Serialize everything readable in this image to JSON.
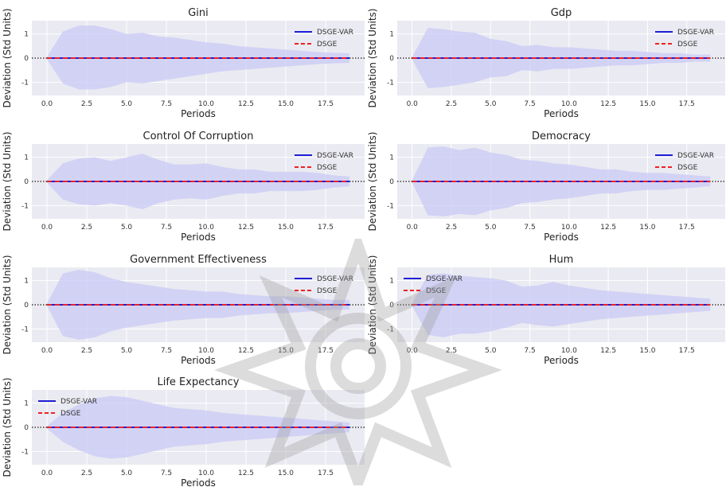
{
  "chart_data": [
    {
      "type": "line",
      "title": "Gini",
      "xlabel": "Periods",
      "ylabel": "Deviation (Std Units)",
      "xlim": [
        -0.95,
        19.95
      ],
      "ylim": [
        -1.55,
        1.55
      ],
      "xticks": [
        "0.0",
        "2.5",
        "5.0",
        "7.5",
        "10.0",
        "12.5",
        "15.0",
        "17.5"
      ],
      "yticks": [
        "-1",
        "0",
        "1"
      ],
      "legend_position": "top-right",
      "grid": true,
      "reference_line_y": 0,
      "x": [
        0,
        1,
        2,
        3,
        4,
        5,
        6,
        7,
        8,
        9,
        10,
        11,
        12,
        13,
        14,
        15,
        16,
        17,
        18,
        19
      ],
      "band_upper": [
        0.05,
        1.1,
        1.35,
        1.35,
        1.2,
        1.0,
        1.05,
        0.9,
        0.85,
        0.75,
        0.65,
        0.6,
        0.5,
        0.45,
        0.4,
        0.35,
        0.3,
        0.25,
        0.22,
        0.2
      ],
      "band_lower": [
        -0.05,
        -1.05,
        -1.3,
        -1.3,
        -1.2,
        -1.0,
        -1.05,
        -0.95,
        -0.85,
        -0.75,
        -0.65,
        -0.55,
        -0.5,
        -0.45,
        -0.4,
        -0.35,
        -0.3,
        -0.25,
        -0.22,
        -0.2
      ],
      "series": [
        {
          "name": "DSGE-VAR",
          "values": [
            0,
            0,
            0,
            0,
            0,
            0,
            0,
            0,
            0,
            0,
            0,
            0,
            0,
            0,
            0,
            0,
            0,
            0,
            0,
            0
          ],
          "color": "#1f1fd6",
          "style": "solid"
        },
        {
          "name": "DSGE",
          "values": [
            0,
            0,
            0,
            0,
            0,
            0,
            0,
            0,
            0,
            0,
            0,
            0,
            0,
            0,
            0,
            0,
            0,
            0,
            0,
            0
          ],
          "color": "#ee2222",
          "style": "dashed"
        }
      ]
    },
    {
      "type": "line",
      "title": "Gdp",
      "xlabel": "Periods",
      "ylabel": "Deviation (Std Units)",
      "xlim": [
        -0.95,
        19.95
      ],
      "ylim": [
        -1.55,
        1.55
      ],
      "xticks": [
        "0.0",
        "2.5",
        "5.0",
        "7.5",
        "10.0",
        "12.5",
        "15.0",
        "17.5"
      ],
      "yticks": [
        "-1",
        "0",
        "1"
      ],
      "legend_position": "top-right",
      "grid": true,
      "reference_line_y": 0,
      "x": [
        0,
        1,
        2,
        3,
        4,
        5,
        6,
        7,
        8,
        9,
        10,
        11,
        12,
        13,
        14,
        15,
        16,
        17,
        18,
        19
      ],
      "band_upper": [
        0.05,
        1.25,
        1.2,
        1.1,
        1.05,
        0.8,
        0.7,
        0.5,
        0.55,
        0.45,
        0.45,
        0.4,
        0.35,
        0.3,
        0.3,
        0.25,
        0.2,
        0.2,
        0.15,
        0.15
      ],
      "band_lower": [
        -0.05,
        -1.25,
        -1.2,
        -1.1,
        -1.0,
        -0.8,
        -0.75,
        -0.5,
        -0.55,
        -0.45,
        -0.45,
        -0.4,
        -0.35,
        -0.3,
        -0.3,
        -0.25,
        -0.2,
        -0.2,
        -0.15,
        -0.15
      ],
      "series": [
        {
          "name": "DSGE-VAR",
          "values": [
            0,
            0,
            0,
            0,
            0,
            0,
            0,
            0,
            0,
            0,
            0,
            0,
            0,
            0,
            0,
            0,
            0,
            0,
            0,
            0
          ],
          "color": "#1f1fd6",
          "style": "solid"
        },
        {
          "name": "DSGE",
          "values": [
            0,
            0,
            0,
            0,
            0,
            0,
            0,
            0,
            0,
            0,
            0,
            0,
            0,
            0,
            0,
            0,
            0,
            0,
            0,
            0
          ],
          "color": "#ee2222",
          "style": "dashed"
        }
      ]
    },
    {
      "type": "line",
      "title": "Control Of Corruption",
      "xlabel": "Periods",
      "ylabel": "Deviation (Std Units)",
      "xlim": [
        -0.95,
        19.95
      ],
      "ylim": [
        -1.55,
        1.55
      ],
      "xticks": [
        "0.0",
        "2.5",
        "5.0",
        "7.5",
        "10.0",
        "12.5",
        "15.0",
        "17.5"
      ],
      "yticks": [
        "-1",
        "0",
        "1"
      ],
      "legend_position": "top-right",
      "grid": true,
      "reference_line_y": 0,
      "x": [
        0,
        1,
        2,
        3,
        4,
        5,
        6,
        7,
        8,
        9,
        10,
        11,
        12,
        13,
        14,
        15,
        16,
        17,
        18,
        19
      ],
      "band_upper": [
        0.05,
        0.75,
        0.95,
        1.0,
        0.85,
        1.0,
        1.15,
        0.9,
        0.7,
        0.7,
        0.75,
        0.6,
        0.5,
        0.5,
        0.4,
        0.4,
        0.4,
        0.35,
        0.25,
        0.2
      ],
      "band_lower": [
        -0.05,
        -0.75,
        -0.95,
        -1.0,
        -0.9,
        -1.0,
        -1.15,
        -0.9,
        -0.75,
        -0.7,
        -0.75,
        -0.6,
        -0.5,
        -0.5,
        -0.4,
        -0.4,
        -0.4,
        -0.35,
        -0.25,
        -0.2
      ],
      "series": [
        {
          "name": "DSGE-VAR",
          "values": [
            0,
            0,
            0,
            0,
            0,
            0,
            0,
            0,
            0,
            0,
            0,
            0,
            0,
            0,
            0,
            0,
            0,
            0,
            0,
            0
          ],
          "color": "#1f1fd6",
          "style": "solid"
        },
        {
          "name": "DSGE",
          "values": [
            0,
            0,
            0,
            0,
            0,
            0,
            0,
            0,
            0,
            0,
            0,
            0,
            0,
            0,
            0,
            0,
            0,
            0,
            0,
            0
          ],
          "color": "#ee2222",
          "style": "dashed"
        }
      ]
    },
    {
      "type": "line",
      "title": "Democracy",
      "xlabel": "Periods",
      "ylabel": "Deviation (Std Units)",
      "xlim": [
        -0.95,
        19.95
      ],
      "ylim": [
        -1.55,
        1.55
      ],
      "xticks": [
        "0.0",
        "2.5",
        "5.0",
        "7.5",
        "10.0",
        "12.5",
        "15.0",
        "17.5"
      ],
      "yticks": [
        "-1",
        "0",
        "1"
      ],
      "legend_position": "top-right",
      "grid": true,
      "reference_line_y": 0,
      "x": [
        0,
        1,
        2,
        3,
        4,
        5,
        6,
        7,
        8,
        9,
        10,
        11,
        12,
        13,
        14,
        15,
        16,
        17,
        18,
        19
      ],
      "band_upper": [
        0.05,
        1.4,
        1.45,
        1.3,
        1.4,
        1.2,
        1.1,
        0.9,
        0.85,
        0.75,
        0.7,
        0.6,
        0.5,
        0.5,
        0.4,
        0.35,
        0.35,
        0.3,
        0.25,
        0.2
      ],
      "band_lower": [
        -0.05,
        -1.4,
        -1.45,
        -1.35,
        -1.4,
        -1.2,
        -1.1,
        -0.9,
        -0.85,
        -0.75,
        -0.7,
        -0.6,
        -0.5,
        -0.5,
        -0.4,
        -0.35,
        -0.35,
        -0.3,
        -0.25,
        -0.2
      ],
      "series": [
        {
          "name": "DSGE-VAR",
          "values": [
            0,
            0,
            0,
            0,
            0,
            0,
            0,
            0,
            0,
            0,
            0,
            0,
            0,
            0,
            0,
            0,
            0,
            0,
            0,
            0
          ],
          "color": "#1f1fd6",
          "style": "solid"
        },
        {
          "name": "DSGE",
          "values": [
            0,
            0,
            0,
            0,
            0,
            0,
            0,
            0,
            0,
            0,
            0,
            0,
            0,
            0,
            0,
            0,
            0,
            0,
            0,
            0
          ],
          "color": "#ee2222",
          "style": "dashed"
        }
      ]
    },
    {
      "type": "line",
      "title": "Government Effectiveness",
      "xlabel": "Periods",
      "ylabel": "Deviation (Std Units)",
      "xlim": [
        -0.95,
        19.95
      ],
      "ylim": [
        -1.55,
        1.55
      ],
      "xticks": [
        "0.0",
        "2.5",
        "5.0",
        "7.5",
        "10.0",
        "12.5",
        "15.0",
        "17.5"
      ],
      "yticks": [
        "-1",
        "0",
        "1"
      ],
      "legend_position": "top-right",
      "grid": true,
      "reference_line_y": 0,
      "x": [
        0,
        1,
        2,
        3,
        4,
        5,
        6,
        7,
        8,
        9,
        10,
        11,
        12,
        13,
        14,
        15,
        16,
        17,
        18,
        19
      ],
      "band_upper": [
        0.05,
        1.3,
        1.45,
        1.35,
        1.1,
        0.95,
        0.85,
        0.75,
        0.65,
        0.6,
        0.55,
        0.55,
        0.45,
        0.4,
        0.35,
        0.35,
        0.3,
        0.25,
        0.2,
        0.2
      ],
      "band_lower": [
        -0.05,
        -1.3,
        -1.45,
        -1.35,
        -1.1,
        -0.95,
        -0.85,
        -0.75,
        -0.65,
        -0.6,
        -0.55,
        -0.55,
        -0.45,
        -0.4,
        -0.35,
        -0.35,
        -0.3,
        -0.25,
        -0.2,
        -0.2
      ],
      "series": [
        {
          "name": "DSGE-VAR",
          "values": [
            0,
            0,
            0,
            0,
            0,
            0,
            0,
            0,
            0,
            0,
            0,
            0,
            0,
            0,
            0,
            0,
            0,
            0,
            0,
            0
          ],
          "color": "#1f1fd6",
          "style": "solid"
        },
        {
          "name": "DSGE",
          "values": [
            0,
            0,
            0,
            0,
            0,
            0,
            0,
            0,
            0,
            0,
            0,
            0,
            0,
            0,
            0,
            0,
            0,
            0,
            0,
            0
          ],
          "color": "#ee2222",
          "style": "dashed"
        }
      ]
    },
    {
      "type": "line",
      "title": "Hum",
      "xlabel": "Periods",
      "ylabel": "Deviation (Std Units)",
      "xlim": [
        -0.95,
        19.95
      ],
      "ylim": [
        -1.55,
        1.55
      ],
      "xticks": [
        "0.0",
        "2.5",
        "5.0",
        "7.5",
        "10.0",
        "12.5",
        "15.0",
        "17.5"
      ],
      "yticks": [
        "-1",
        "0",
        "1"
      ],
      "legend_position": "top-left",
      "grid": true,
      "reference_line_y": 0,
      "x": [
        0,
        1,
        2,
        3,
        4,
        5,
        6,
        7,
        8,
        9,
        10,
        11,
        12,
        13,
        14,
        15,
        16,
        17,
        18,
        19
      ],
      "band_upper": [
        0.05,
        1.25,
        1.3,
        1.2,
        1.15,
        1.1,
        1.0,
        0.75,
        0.8,
        0.95,
        0.8,
        0.7,
        0.6,
        0.55,
        0.5,
        0.45,
        0.4,
        0.35,
        0.3,
        0.25
      ],
      "band_lower": [
        -0.05,
        -1.25,
        -1.35,
        -1.2,
        -1.2,
        -1.1,
        -0.95,
        -0.75,
        -0.85,
        -0.9,
        -0.8,
        -0.7,
        -0.6,
        -0.55,
        -0.5,
        -0.45,
        -0.4,
        -0.35,
        -0.3,
        -0.25
      ],
      "series": [
        {
          "name": "DSGE-VAR",
          "values": [
            0,
            0,
            0,
            0,
            0,
            0,
            0,
            0,
            0,
            0,
            0,
            0,
            0,
            0,
            0,
            0,
            0,
            0,
            0,
            0
          ],
          "color": "#1f1fd6",
          "style": "solid"
        },
        {
          "name": "DSGE",
          "values": [
            0,
            0,
            0,
            0,
            0,
            0,
            0,
            0,
            0,
            0,
            0,
            0,
            0,
            0,
            0,
            0,
            0,
            0,
            0,
            0
          ],
          "color": "#ee2222",
          "style": "dashed"
        }
      ]
    },
    {
      "type": "line",
      "title": "Life Expectancy",
      "xlabel": "Periods",
      "ylabel": "Deviation (Std Units)",
      "xlim": [
        -0.95,
        19.95
      ],
      "ylim": [
        -1.55,
        1.55
      ],
      "xticks": [
        "0.0",
        "2.5",
        "5.0",
        "7.5",
        "10.0",
        "12.5",
        "15.0",
        "17.5"
      ],
      "yticks": [
        "-1",
        "0",
        "1"
      ],
      "legend_position": "top-left",
      "grid": true,
      "reference_line_y": 0,
      "x": [
        0,
        1,
        2,
        3,
        4,
        5,
        6,
        7,
        8,
        9,
        10,
        11,
        12,
        13,
        14,
        15,
        16,
        17,
        18,
        19
      ],
      "band_upper": [
        0.05,
        0.6,
        0.95,
        1.2,
        1.3,
        1.25,
        1.1,
        0.95,
        0.8,
        0.75,
        0.7,
        0.6,
        0.55,
        0.5,
        0.45,
        0.4,
        0.35,
        0.3,
        0.25,
        0.2
      ],
      "band_lower": [
        -0.05,
        -0.6,
        -0.95,
        -1.2,
        -1.3,
        -1.25,
        -1.1,
        -0.95,
        -0.8,
        -0.75,
        -0.7,
        -0.6,
        -0.55,
        -0.5,
        -0.45,
        -0.4,
        -0.35,
        -0.3,
        -0.25,
        -0.2
      ],
      "series": [
        {
          "name": "DSGE-VAR",
          "values": [
            0,
            0,
            0,
            0,
            0,
            0,
            0,
            0,
            0,
            0,
            0,
            0,
            0,
            0,
            0,
            0,
            0,
            0,
            0,
            0
          ],
          "color": "#1f1fd6",
          "style": "solid"
        },
        {
          "name": "DSGE",
          "values": [
            0,
            0,
            0,
            0,
            0,
            0,
            0,
            0,
            0,
            0,
            0,
            0,
            0,
            0,
            0,
            0,
            0,
            0,
            0,
            0
          ],
          "color": "#ee2222",
          "style": "dashed"
        }
      ]
    }
  ],
  "style": {
    "axes_background": "#eaeaf2",
    "grid_color": "#ffffff",
    "band_color": "#c9c9f5",
    "zero_line_color": "#111111"
  },
  "watermark": {
    "icon": "ornamental-star-watermark-icon"
  }
}
